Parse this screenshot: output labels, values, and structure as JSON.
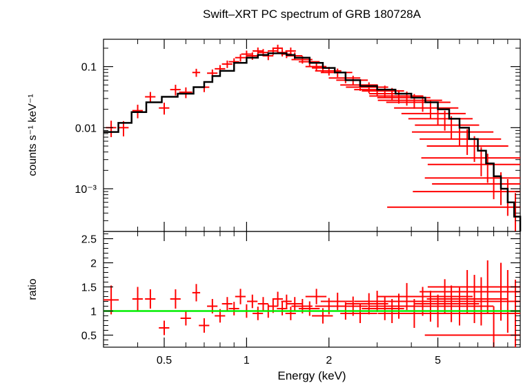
{
  "chart_data": {
    "type": "scatter",
    "title": "Swift–XRT PC spectrum of GRB 180728A",
    "xlabel": "Energy (keV)",
    "x_scale": "log",
    "xlim": [
      0.3,
      10
    ],
    "x_ticks": [
      {
        "value": 0.5,
        "label": "0.5"
      },
      {
        "value": 1,
        "label": "1"
      },
      {
        "value": 2,
        "label": "2"
      },
      {
        "value": 5,
        "label": "5"
      }
    ],
    "panels": [
      {
        "name": "spectrum",
        "ylabel": "counts s⁻¹ keV⁻¹",
        "y_scale": "log",
        "ylim": [
          0.0002,
          0.28
        ],
        "y_ticks": [
          {
            "value": 0.1,
            "label": "0.1"
          },
          {
            "value": 0.01,
            "label": "0.01"
          },
          {
            "value": 0.001,
            "label": "10⁻³"
          }
        ],
        "data": {
          "color": "#ff0000",
          "x": [
            0.32,
            0.355,
            0.4,
            0.445,
            0.5,
            0.55,
            0.6,
            0.655,
            0.7,
            0.75,
            0.8,
            0.85,
            0.9,
            0.95,
            1.0,
            1.05,
            1.1,
            1.15,
            1.2,
            1.25,
            1.3,
            1.35,
            1.4,
            1.45,
            1.5,
            1.6,
            1.7,
            1.8,
            1.9,
            2.0,
            2.15,
            2.3,
            2.45,
            2.6,
            2.8,
            3.0,
            3.2,
            3.4,
            3.6,
            3.85,
            4.1,
            4.4,
            4.7,
            5.0,
            5.3,
            5.6,
            6.0,
            6.4,
            6.8,
            7.2,
            7.6,
            8.0,
            8.5,
            9.0,
            9.6
          ],
          "y": [
            0.01,
            0.01,
            0.019,
            0.032,
            0.021,
            0.042,
            0.038,
            0.08,
            0.046,
            0.078,
            0.092,
            0.11,
            0.12,
            0.14,
            0.16,
            0.15,
            0.18,
            0.17,
            0.15,
            0.18,
            0.2,
            0.17,
            0.16,
            0.18,
            0.15,
            0.13,
            0.12,
            0.1,
            0.095,
            0.085,
            0.08,
            0.065,
            0.06,
            0.05,
            0.046,
            0.042,
            0.04,
            0.036,
            0.033,
            0.031,
            0.028,
            0.026,
            0.021,
            0.017,
            0.014,
            0.011,
            0.0085,
            0.0065,
            0.005,
            0.0032,
            0.0025,
            0.0015,
            0.0012,
            0.0009,
            0.0005
          ],
          "x_err": [
            0.02,
            0.02,
            0.02,
            0.02,
            0.02,
            0.02,
            0.025,
            0.015,
            0.02,
            0.02,
            0.02,
            0.02,
            0.02,
            0.02,
            0.02,
            0.02,
            0.02,
            0.02,
            0.02,
            0.02,
            0.02,
            0.02,
            0.02,
            0.02,
            0.03,
            0.04,
            0.04,
            0.04,
            0.04,
            0.05,
            0.06,
            0.06,
            0.06,
            0.07,
            0.08,
            0.08,
            0.08,
            0.08,
            0.1,
            0.1,
            0.12,
            0.12,
            0.12,
            0.12,
            0.12,
            0.12,
            0.15,
            0.15,
            0.15,
            0.18,
            0.18,
            0.2,
            0.2,
            0.25,
            0.3
          ],
          "y_err_frac": [
            0.3,
            0.28,
            0.25,
            0.2,
            0.22,
            0.2,
            0.2,
            0.15,
            0.17,
            0.15,
            0.15,
            0.14,
            0.14,
            0.14,
            0.14,
            0.14,
            0.14,
            0.14,
            0.15,
            0.14,
            0.14,
            0.14,
            0.14,
            0.14,
            0.14,
            0.14,
            0.15,
            0.15,
            0.15,
            0.16,
            0.16,
            0.18,
            0.18,
            0.2,
            0.2,
            0.22,
            0.22,
            0.24,
            0.25,
            0.26,
            0.27,
            0.3,
            0.32,
            0.35,
            0.36,
            0.4,
            0.42,
            0.45,
            0.45,
            0.5,
            0.5,
            0.55,
            0.55,
            0.6,
            0.7
          ]
        },
        "model": {
          "color": "#000000",
          "x": [
            0.3,
            0.34,
            0.38,
            0.43,
            0.49,
            0.56,
            0.64,
            0.7,
            0.75,
            0.8,
            0.9,
            1.0,
            1.1,
            1.2,
            1.3,
            1.4,
            1.5,
            1.7,
            1.9,
            2.1,
            2.3,
            2.6,
            3.0,
            3.5,
            4.0,
            4.5,
            5.0,
            5.5,
            6.0,
            6.5,
            7.0,
            7.5,
            8.0,
            8.5,
            9.0,
            9.5,
            10.0
          ],
          "y": [
            0.0085,
            0.012,
            0.018,
            0.026,
            0.032,
            0.036,
            0.046,
            0.056,
            0.07,
            0.085,
            0.115,
            0.14,
            0.155,
            0.165,
            0.165,
            0.155,
            0.14,
            0.115,
            0.095,
            0.08,
            0.06,
            0.048,
            0.042,
            0.036,
            0.031,
            0.026,
            0.02,
            0.014,
            0.01,
            0.0065,
            0.0042,
            0.0026,
            0.0016,
            0.001,
            0.0006,
            0.00035,
            0.0002
          ]
        }
      },
      {
        "name": "ratio",
        "ylabel": "ratio",
        "y_scale": "linear",
        "ylim": [
          0.25,
          2.65
        ],
        "y_ticks": [
          {
            "value": 0.5,
            "label": "0.5"
          },
          {
            "value": 1,
            "label": "1"
          },
          {
            "value": 1.5,
            "label": "1.5"
          },
          {
            "value": 2,
            "label": "2"
          },
          {
            "value": 2.5,
            "label": "2.5"
          }
        ],
        "reference_line": {
          "value": 1,
          "color": "#00ee00"
        },
        "data": {
          "color": "#ff0000",
          "x": [
            0.32,
            0.4,
            0.445,
            0.5,
            0.55,
            0.6,
            0.655,
            0.7,
            0.75,
            0.8,
            0.85,
            0.9,
            0.95,
            1.0,
            1.05,
            1.1,
            1.15,
            1.2,
            1.25,
            1.3,
            1.35,
            1.4,
            1.45,
            1.5,
            1.6,
            1.7,
            1.8,
            1.9,
            2.0,
            2.15,
            2.3,
            2.45,
            2.6,
            2.8,
            3.0,
            3.2,
            3.4,
            3.6,
            3.85,
            4.1,
            4.4,
            4.7,
            5.0,
            5.3,
            5.6,
            6.0,
            6.4,
            6.8,
            7.2,
            7.6,
            8.0,
            8.5,
            9.0,
            9.6
          ],
          "y": [
            1.23,
            1.25,
            1.25,
            0.65,
            1.25,
            0.85,
            1.38,
            0.7,
            1.1,
            0.9,
            1.15,
            1.05,
            1.3,
            1.0,
            1.2,
            0.95,
            1.15,
            1.0,
            1.1,
            1.25,
            1.05,
            1.2,
            0.95,
            1.15,
            1.1,
            1.05,
            1.3,
            0.9,
            1.1,
            1.2,
            1.0,
            1.1,
            0.95,
            1.15,
            1.2,
            1.05,
            1.0,
            1.1,
            1.3,
            0.95,
            1.2,
            1.1,
            1.0,
            1.3,
            1.15,
            1.1,
            1.4,
            1.25,
            1.2,
            1.5,
            0.5,
            1.4,
            1.2,
            0.95
          ],
          "x_err": [
            0.03,
            0.02,
            0.02,
            0.02,
            0.02,
            0.02,
            0.015,
            0.02,
            0.02,
            0.02,
            0.02,
            0.02,
            0.02,
            0.02,
            0.02,
            0.02,
            0.02,
            0.02,
            0.02,
            0.02,
            0.02,
            0.02,
            0.02,
            0.03,
            0.04,
            0.04,
            0.04,
            0.04,
            0.05,
            0.06,
            0.06,
            0.06,
            0.07,
            0.08,
            0.08,
            0.08,
            0.08,
            0.1,
            0.1,
            0.12,
            0.12,
            0.12,
            0.12,
            0.12,
            0.12,
            0.15,
            0.15,
            0.15,
            0.18,
            0.18,
            0.2,
            0.2,
            0.25,
            0.3
          ],
          "y_err": [
            0.3,
            0.25,
            0.2,
            0.15,
            0.2,
            0.15,
            0.18,
            0.15,
            0.15,
            0.14,
            0.14,
            0.14,
            0.16,
            0.14,
            0.14,
            0.14,
            0.14,
            0.14,
            0.14,
            0.15,
            0.14,
            0.14,
            0.14,
            0.14,
            0.15,
            0.15,
            0.16,
            0.16,
            0.17,
            0.18,
            0.18,
            0.2,
            0.2,
            0.22,
            0.22,
            0.24,
            0.25,
            0.26,
            0.28,
            0.3,
            0.3,
            0.32,
            0.34,
            0.36,
            0.38,
            0.4,
            0.45,
            0.5,
            0.5,
            0.55,
            0.6,
            0.6,
            0.65,
            0.7
          ]
        }
      }
    ]
  }
}
